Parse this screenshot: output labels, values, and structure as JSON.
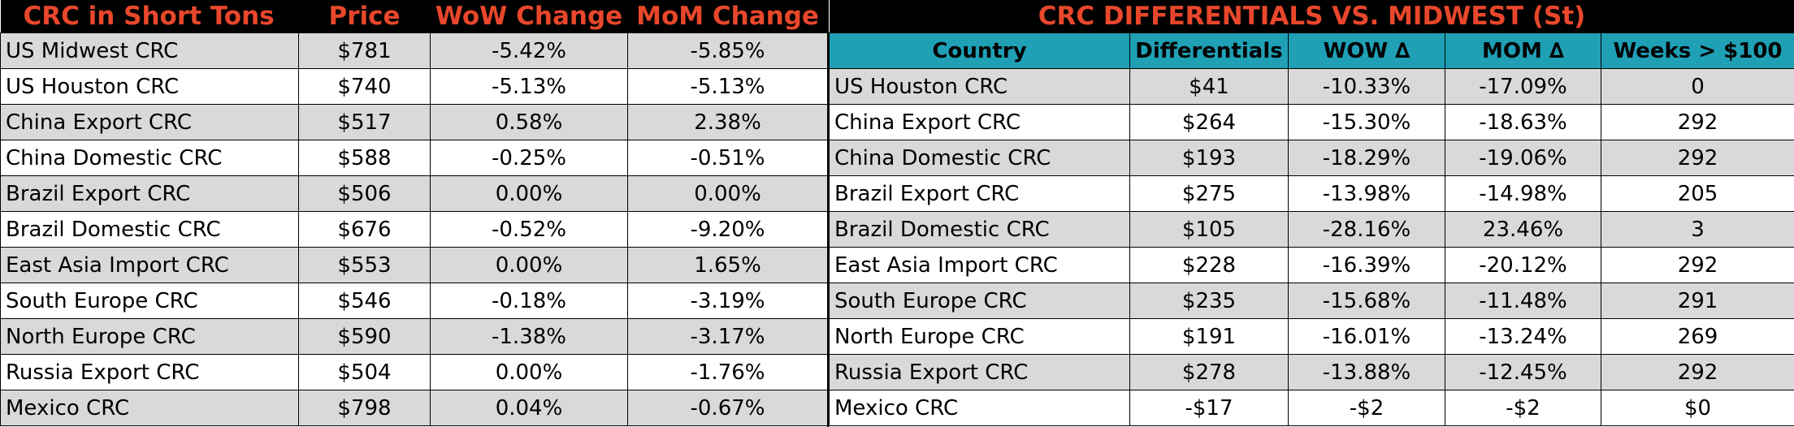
{
  "left_table": {
    "headers": [
      "CRC in Short Tons",
      "Price",
      "WoW Change",
      "MoM Change"
    ],
    "rows": [
      {
        "name": "US Midwest CRC",
        "price": "$781",
        "wow": "-5.42%",
        "mom": "-5.85%"
      },
      {
        "name": "US Houston CRC",
        "price": "$740",
        "wow": "-5.13%",
        "mom": "-5.13%"
      },
      {
        "name": "China Export CRC",
        "price": "$517",
        "wow": "0.58%",
        "mom": "2.38%"
      },
      {
        "name": "China Domestic CRC",
        "price": "$588",
        "wow": "-0.25%",
        "mom": "-0.51%"
      },
      {
        "name": "Brazil Export CRC",
        "price": "$506",
        "wow": "0.00%",
        "mom": "0.00%"
      },
      {
        "name": "Brazil Domestic CRC",
        "price": "$676",
        "wow": "-0.52%",
        "mom": "-9.20%"
      },
      {
        "name": "East Asia Import CRC",
        "price": "$553",
        "wow": "0.00%",
        "mom": "1.65%"
      },
      {
        "name": "South Europe CRC",
        "price": "$546",
        "wow": "-0.18%",
        "mom": "-3.19%"
      },
      {
        "name": "North Europe CRC",
        "price": "$590",
        "wow": "-1.38%",
        "mom": "-3.17%"
      },
      {
        "name": "Russia Export CRC",
        "price": "$504",
        "wow": "0.00%",
        "mom": "-1.76%"
      },
      {
        "name": "Mexico CRC",
        "price": "$798",
        "wow": "0.04%",
        "mom": "-0.67%"
      }
    ]
  },
  "right_table": {
    "title": "CRC DIFFERENTIALS VS. MIDWEST (St)",
    "headers": [
      "Country",
      "Differentials",
      "WOW ∆",
      "MOM ∆",
      "Weeks > $100"
    ],
    "rows": [
      {
        "name": "US Houston CRC",
        "diff": "$41",
        "wow": "-10.33%",
        "mom": "-17.09%",
        "weeks": "0"
      },
      {
        "name": "China Export CRC",
        "diff": "$264",
        "wow": "-15.30%",
        "mom": "-18.63%",
        "weeks": "292"
      },
      {
        "name": "China Domestic CRC",
        "diff": "$193",
        "wow": "-18.29%",
        "mom": "-19.06%",
        "weeks": "292"
      },
      {
        "name": "Brazil Export CRC",
        "diff": "$275",
        "wow": "-13.98%",
        "mom": "-14.98%",
        "weeks": "205"
      },
      {
        "name": "Brazil Domestic CRC",
        "diff": "$105",
        "wow": "-28.16%",
        "mom": "23.46%",
        "weeks": "3"
      },
      {
        "name": "East Asia Import CRC",
        "diff": "$228",
        "wow": "-16.39%",
        "mom": "-20.12%",
        "weeks": "292"
      },
      {
        "name": "South Europe CRC",
        "diff": "$235",
        "wow": "-15.68%",
        "mom": "-11.48%",
        "weeks": "291"
      },
      {
        "name": "North Europe CRC",
        "diff": "$191",
        "wow": "-16.01%",
        "mom": "-13.24%",
        "weeks": "269"
      },
      {
        "name": "Russia Export CRC",
        "diff": "$278",
        "wow": "-13.88%",
        "mom": "-12.45%",
        "weeks": "292"
      },
      {
        "name": "Mexico CRC",
        "diff": "-$17",
        "wow": "-$2",
        "mom": "-$2",
        "weeks": "$0"
      }
    ]
  },
  "colors": {
    "title_text": "#e8472b",
    "title_bg": "#000000",
    "header_teal": "#1fa0b5",
    "row_shade": "#d9d9d9"
  }
}
